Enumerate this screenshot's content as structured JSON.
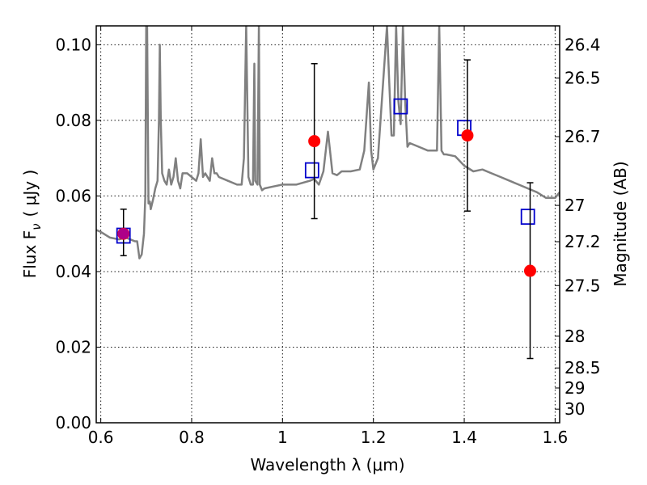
{
  "chart_data": {
    "type": "scatter",
    "xlabel": "Wavelength  λ (μm)",
    "ylabel": "Flux  F",
    "ylabel_sub": "ν",
    "ylabel_unit": "( μJy )",
    "y2label": "Magnitude (AB)",
    "xlim": [
      0.59,
      1.61
    ],
    "ylim": [
      0.0,
      0.105
    ],
    "grid": true,
    "x_ticks": [
      {
        "value": 0.6,
        "label": "0.6"
      },
      {
        "value": 0.8,
        "label": "0.8"
      },
      {
        "value": 1.0,
        "label": "1"
      },
      {
        "value": 1.2,
        "label": "1.2"
      },
      {
        "value": 1.4,
        "label": "1.4"
      },
      {
        "value": 1.6,
        "label": "1.6"
      }
    ],
    "y_ticks": [
      {
        "value": 0.0,
        "label": "0.00"
      },
      {
        "value": 0.02,
        "label": "0.02"
      },
      {
        "value": 0.04,
        "label": "0.04"
      },
      {
        "value": 0.06,
        "label": "0.06"
      },
      {
        "value": 0.08,
        "label": "0.08"
      },
      {
        "value": 0.1,
        "label": "0.10"
      }
    ],
    "y2_ticks": [
      {
        "flux": 0.1,
        "label": "26.4"
      },
      {
        "flux": 0.0912,
        "label": "26.5"
      },
      {
        "flux": 0.0757,
        "label": "26.7"
      },
      {
        "flux": 0.0575,
        "label": "27"
      },
      {
        "flux": 0.0479,
        "label": "27.2"
      },
      {
        "flux": 0.0363,
        "label": "27.5"
      },
      {
        "flux": 0.0229,
        "label": "28"
      },
      {
        "flux": 0.0145,
        "label": "28.5"
      },
      {
        "flux": 0.0092,
        "label": "29"
      },
      {
        "flux": 0.0036,
        "label": "30"
      }
    ],
    "series": [
      {
        "kind": "model_spectrum",
        "color": "#808080",
        "x": [
          0.59,
          0.6,
          0.62,
          0.64,
          0.655,
          0.665,
          0.675,
          0.68,
          0.685,
          0.69,
          0.695,
          0.698,
          0.7,
          0.702,
          0.705,
          0.708,
          0.71,
          0.715,
          0.72,
          0.725,
          0.728,
          0.73,
          0.732,
          0.735,
          0.74,
          0.745,
          0.75,
          0.755,
          0.76,
          0.765,
          0.77,
          0.775,
          0.78,
          0.79,
          0.8,
          0.81,
          0.815,
          0.82,
          0.825,
          0.83,
          0.84,
          0.845,
          0.85,
          0.855,
          0.86,
          0.88,
          0.9,
          0.91,
          0.915,
          0.92,
          0.925,
          0.93,
          0.935,
          0.938,
          0.94,
          0.945,
          0.948,
          0.95,
          0.955,
          0.96,
          0.98,
          1.0,
          1.03,
          1.06,
          1.07,
          1.08,
          1.09,
          1.1,
          1.11,
          1.12,
          1.13,
          1.15,
          1.17,
          1.18,
          1.19,
          1.195,
          1.2,
          1.21,
          1.23,
          1.235,
          1.24,
          1.245,
          1.25,
          1.255,
          1.26,
          1.265,
          1.27,
          1.275,
          1.28,
          1.3,
          1.32,
          1.34,
          1.345,
          1.35,
          1.355,
          1.36,
          1.38,
          1.4,
          1.42,
          1.44,
          1.46,
          1.48,
          1.5,
          1.52,
          1.54,
          1.56,
          1.58,
          1.6,
          1.61
        ],
        "y": [
          0.051,
          0.0505,
          0.049,
          0.0485,
          0.049,
          0.0485,
          0.048,
          0.048,
          0.0435,
          0.0445,
          0.05,
          0.06,
          0.105,
          0.105,
          0.058,
          0.0585,
          0.0565,
          0.059,
          0.062,
          0.064,
          0.08,
          0.1,
          0.08,
          0.066,
          0.064,
          0.063,
          0.067,
          0.063,
          0.065,
          0.07,
          0.064,
          0.062,
          0.066,
          0.066,
          0.065,
          0.064,
          0.066,
          0.075,
          0.065,
          0.066,
          0.064,
          0.07,
          0.066,
          0.066,
          0.065,
          0.064,
          0.063,
          0.063,
          0.07,
          0.105,
          0.065,
          0.063,
          0.063,
          0.095,
          0.064,
          0.063,
          0.105,
          0.063,
          0.0615,
          0.062,
          0.0625,
          0.063,
          0.063,
          0.064,
          0.0645,
          0.063,
          0.0665,
          0.077,
          0.066,
          0.0655,
          0.0665,
          0.0665,
          0.067,
          0.072,
          0.09,
          0.072,
          0.067,
          0.07,
          0.105,
          0.09,
          0.076,
          0.076,
          0.105,
          0.085,
          0.079,
          0.105,
          0.085,
          0.073,
          0.074,
          0.073,
          0.072,
          0.072,
          0.105,
          0.072,
          0.071,
          0.071,
          0.0705,
          0.068,
          0.0665,
          0.067,
          0.066,
          0.065,
          0.064,
          0.063,
          0.062,
          0.061,
          0.0595,
          0.0595,
          0.061
        ]
      },
      {
        "kind": "observed",
        "color": "#ff0000",
        "x": [
          0.65,
          1.07,
          1.407,
          1.545
        ],
        "y": [
          0.05,
          0.0745,
          0.076,
          0.0402
        ],
        "y_low": [
          0.0442,
          0.054,
          0.056,
          0.017
        ],
        "y_high": [
          0.0565,
          0.095,
          0.096,
          0.0635
        ]
      },
      {
        "kind": "model_photometry",
        "color": "#0000cc",
        "x": [
          0.65,
          1.065,
          1.26,
          1.4,
          1.54
        ],
        "y": [
          0.0495,
          0.0668,
          0.0837,
          0.078,
          0.0545
        ]
      }
    ]
  }
}
